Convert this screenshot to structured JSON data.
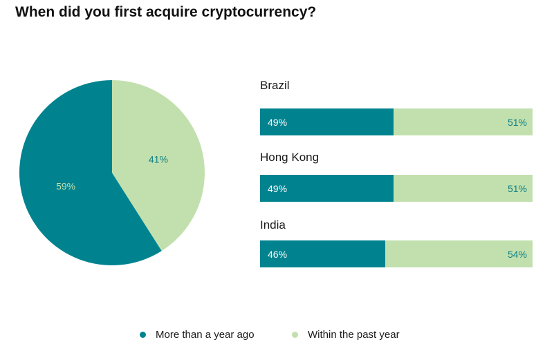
{
  "title": "When did you first acquire cryptocurrency?",
  "colors": {
    "more_than_a_year": "#00838f",
    "within_past_year": "#c2e0ad",
    "pie_label_dark_bg": "#c2e0ad",
    "pie_label_light_bg": "#0f7f86"
  },
  "legend": [
    {
      "label": "More than a year ago"
    },
    {
      "label": "Within the past year"
    }
  ],
  "chart_data": [
    {
      "type": "pie",
      "categories": [
        "More than a year ago",
        "Within the past year"
      ],
      "values": [
        59,
        41
      ],
      "labels": [
        "59%",
        "41%"
      ]
    },
    {
      "type": "bar",
      "orientation": "horizontal-stacked-100",
      "categories": [
        "Brazil",
        "Hong Kong",
        "India"
      ],
      "series": [
        {
          "name": "More than a year ago",
          "values": [
            49,
            49,
            46
          ],
          "labels": [
            "49%",
            "49%",
            "46%"
          ]
        },
        {
          "name": "Within the past year",
          "values": [
            51,
            51,
            54
          ],
          "labels": [
            "51%",
            "51%",
            "54%"
          ]
        }
      ]
    }
  ]
}
